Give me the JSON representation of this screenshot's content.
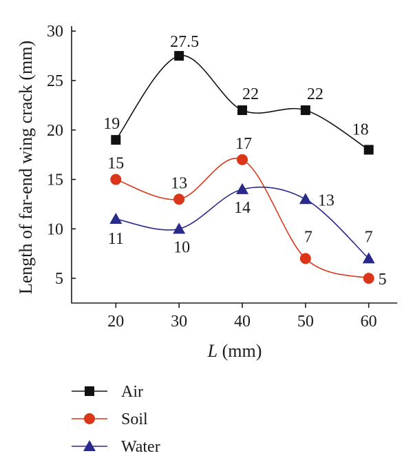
{
  "chart_data": {
    "type": "line",
    "xlabel_italic": "L",
    "xlabel_rest": " (mm)",
    "ylabel": "Length of far-end wing crack (mm)",
    "x": [
      20,
      30,
      40,
      50,
      60
    ],
    "xlim": [
      13,
      64.5
    ],
    "ylim": [
      2.5,
      30.5
    ],
    "xticks": [
      20,
      30,
      40,
      50,
      60
    ],
    "yticks": [
      5,
      10,
      15,
      20,
      25,
      30
    ],
    "grid": false,
    "legend_position": "bottom-left, below plot",
    "series": [
      {
        "name": "Air",
        "marker": "square",
        "color": "#111111",
        "values": [
          19,
          27.5,
          22,
          22,
          18
        ],
        "labels": [
          "19",
          "27.5",
          "22",
          "22",
          "18"
        ]
      },
      {
        "name": "Soil",
        "marker": "circle",
        "color": "#d9361a",
        "values": [
          15,
          13,
          17,
          7,
          5
        ],
        "labels": [
          "15",
          "13",
          "17",
          "7",
          "5"
        ]
      },
      {
        "name": "Water",
        "marker": "triangle",
        "color": "#2a2a8c",
        "values": [
          11,
          10,
          14,
          13,
          7
        ],
        "labels": [
          "11",
          "10",
          "14",
          "13",
          "7"
        ]
      }
    ]
  }
}
